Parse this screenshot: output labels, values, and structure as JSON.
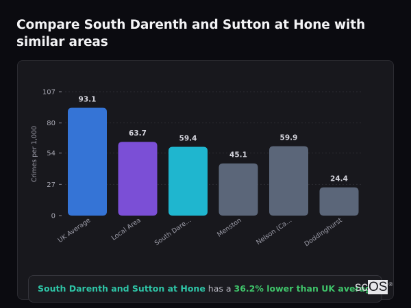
{
  "title": "Compare South Darenth and Sutton at Hone with similar areas",
  "chart_data": {
    "type": "bar",
    "title": "Compare South Darenth and Sutton at Hone with similar areas",
    "xlabel": "",
    "ylabel": "Crimes per 1,000",
    "ylim": [
      0,
      107
    ],
    "yticks": [
      0,
      27,
      54,
      80,
      107
    ],
    "grid": true,
    "legend": "none",
    "categories": [
      "UK Average",
      "Local Area",
      "South Dare...",
      "Menston",
      "Nelson (Ca...",
      "Doddinghurst"
    ],
    "values": [
      93.1,
      63.7,
      59.4,
      45.1,
      59.9,
      24.4
    ],
    "value_labels": [
      "93.1",
      "63.7",
      "59.4",
      "45.1",
      "59.9",
      "24.4"
    ],
    "colors": [
      "#3574d6",
      "#7b4fd6",
      "#1fb6cf",
      "#5b6679",
      "#5b6679",
      "#5b6679"
    ]
  },
  "footer": {
    "area_name": "South Darenth and Sutton at Hone",
    "middle_text": " has a ",
    "stat_text": "36.2% lower than UK average"
  },
  "logo": {
    "prefix": "sc",
    "boxed": "OS",
    "reg": "®"
  }
}
